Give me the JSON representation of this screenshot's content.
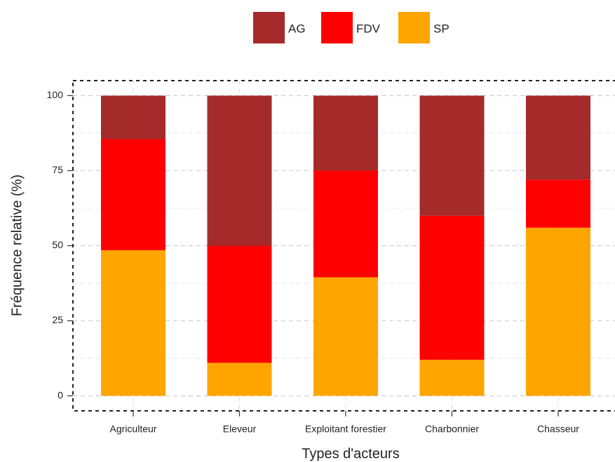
{
  "chart_data": {
    "type": "stacked_bar",
    "x_label": "Types d'acteurs",
    "y_label": "Fréquence relative (%)",
    "categories": [
      "Agriculteur",
      "Eleveur",
      "Exploitant forestier",
      "Charbonnier",
      "Chasseur"
    ],
    "series": [
      {
        "name": "AG",
        "color": "#a52a2a",
        "values": [
          14.5,
          50,
          25,
          40,
          28
        ]
      },
      {
        "name": "FDV",
        "color": "#ff0000",
        "values": [
          37,
          39,
          35.5,
          48,
          16
        ]
      },
      {
        "name": "SP",
        "color": "#ffa500",
        "values": [
          48.5,
          11,
          39.5,
          12,
          56
        ]
      }
    ],
    "ylim": [
      -5,
      105
    ],
    "yticks": [
      0,
      25,
      50,
      75,
      100
    ],
    "yminor": [
      12.5,
      37.5,
      62.5,
      87.5
    ],
    "grid": true,
    "legend": "top"
  }
}
